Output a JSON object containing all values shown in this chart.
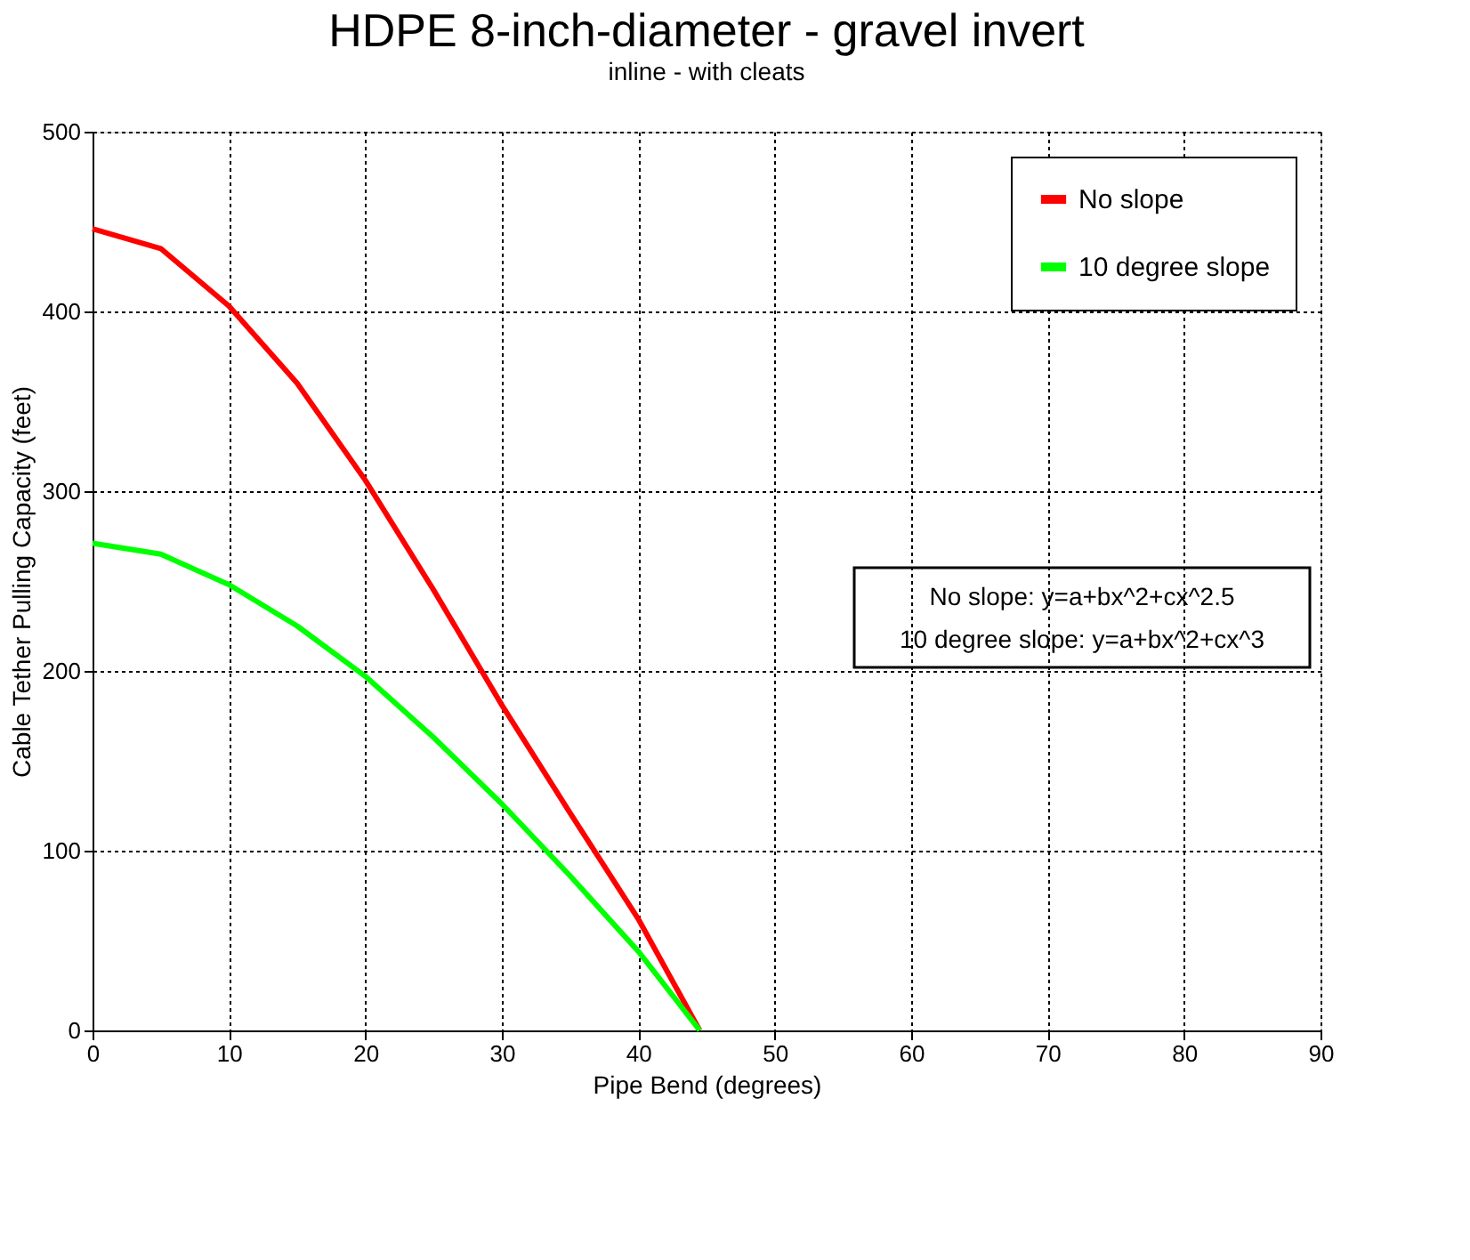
{
  "chart_data": {
    "type": "line",
    "title": "HDPE 8-inch-diameter - gravel invert",
    "subtitle": "inline - with cleats",
    "xlabel": "Pipe Bend (degrees)",
    "ylabel": "Cable Tether Pulling Capacity (feet)",
    "x": [
      0,
      5,
      10,
      15,
      20,
      25,
      30,
      35,
      40,
      44.5
    ],
    "series": [
      {
        "name": "No slope",
        "color": "#ff0000",
        "values": [
          446,
          435,
          403,
          360,
          306,
          245,
          181,
          121,
          62,
          0
        ]
      },
      {
        "name": "10 degree slope",
        "color": "#00ff00",
        "values": [
          271,
          265,
          248,
          225,
          197,
          163,
          126,
          86,
          44,
          0
        ]
      }
    ],
    "annotations": [
      "No slope: y=a+bx^2+cx^2.5",
      "10 degree slope: y=a+bx^2+cx^3"
    ],
    "xlim": [
      0,
      90
    ],
    "xticks": [
      0,
      10,
      20,
      30,
      40,
      50,
      60,
      70,
      80,
      90
    ],
    "ylim": [
      0,
      500
    ],
    "yticks": [
      0,
      100,
      200,
      300,
      400,
      500
    ],
    "grid": true,
    "legend": "top right",
    "line_style": "solid",
    "marker": "none"
  }
}
